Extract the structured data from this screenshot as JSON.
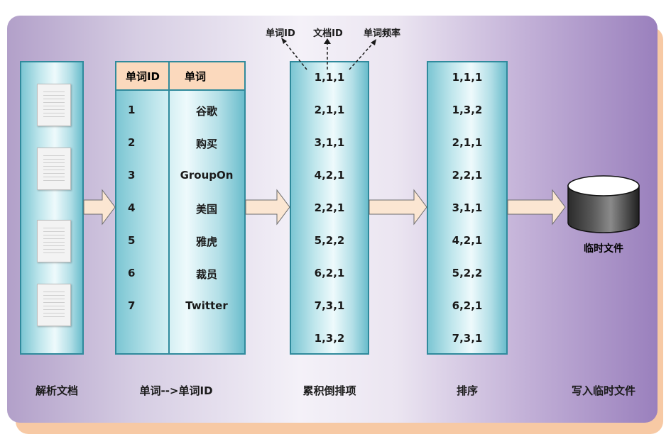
{
  "stages": [
    {
      "id": "parse",
      "label": "解析文档"
    },
    {
      "id": "map",
      "label": "单词-->单词ID"
    },
    {
      "id": "accumulate",
      "label": "累积倒排项"
    },
    {
      "id": "sort",
      "label": "排序"
    },
    {
      "id": "write",
      "label": "写入临时文件"
    }
  ],
  "word_table": {
    "headers": [
      "单词ID",
      "单词"
    ],
    "rows": [
      {
        "id": "1",
        "word": "谷歌"
      },
      {
        "id": "2",
        "word": "购买"
      },
      {
        "id": "3",
        "word": "GroupOn"
      },
      {
        "id": "4",
        "word": "美国"
      },
      {
        "id": "5",
        "word": "雅虎"
      },
      {
        "id": "6",
        "word": "裁员"
      },
      {
        "id": "7",
        "word": "Twitter"
      }
    ]
  },
  "accumulated_items": [
    "1,1,1",
    "2,1,1",
    "3,1,1",
    "4,2,1",
    "2,2,1",
    "5,2,2",
    "6,2,1",
    "7,3,1",
    "1,3,2"
  ],
  "sorted_items": [
    "1,1,1",
    "1,3,2",
    "2,1,1",
    "2,2,1",
    "3,1,1",
    "4,2,1",
    "5,2,2",
    "6,2,1",
    "7,3,1"
  ],
  "tuple_fields": [
    "单词ID",
    "文档ID",
    "单词频率"
  ],
  "disk_label": "临时文件",
  "document_count": 4,
  "colors": {
    "column_border": "#2f8a9c",
    "header_fill": "#fbd9bd",
    "arrow_fill": "#fbe6d2",
    "panel_accent": "#9a80bd"
  }
}
